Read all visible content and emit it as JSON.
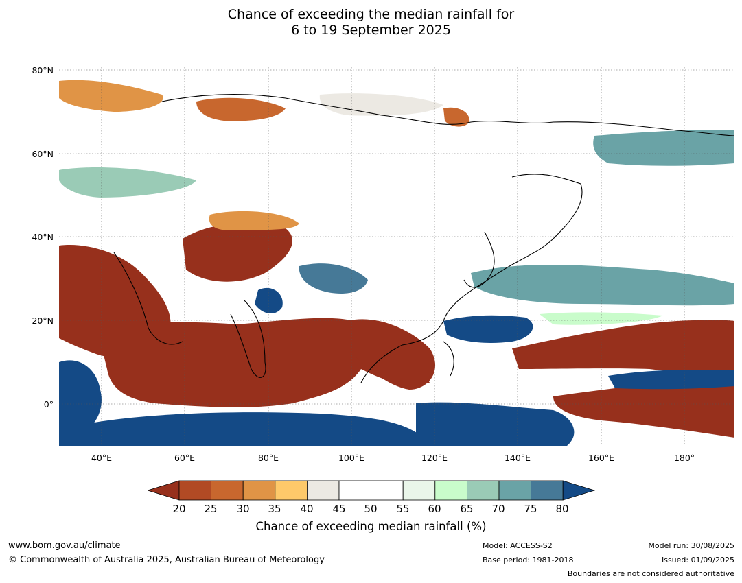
{
  "title": {
    "line1": "Chance of exceeding the median rainfall for",
    "line2": "6 to 19 September 2025"
  },
  "map": {
    "region": "Asia and western Pacific",
    "lon_range": [
      30,
      192
    ],
    "lat_range": [
      -10,
      80
    ],
    "lat_labels": [
      "80°N",
      "60°N",
      "40°N",
      "20°N",
      "0°"
    ],
    "lon_labels": [
      "40°E",
      "60°E",
      "80°E",
      "100°E",
      "120°E",
      "140°E",
      "160°E",
      "180°"
    ],
    "colors": {
      "below_20": "#97301c",
      "20_25": "#b14a24",
      "25_30": "#c8672e",
      "30_35": "#e09446",
      "35_40": "#fec96a",
      "40_45": "#ece9e3",
      "45_55": "#ffffff",
      "55_60": "#eaf6ea",
      "60_65": "#c9fccb",
      "65_70": "#9acbb6",
      "70_75": "#6aa3a6",
      "75_80": "#467997",
      "above_80": "#144a86"
    }
  },
  "colorbar": {
    "title": "Chance of exceeding median rainfall (%)",
    "ticks": [
      "20",
      "25",
      "30",
      "35",
      "40",
      "45",
      "50",
      "55",
      "60",
      "65",
      "70",
      "75",
      "80"
    ],
    "bins": [
      "#b14a24",
      "#c8672e",
      "#e09446",
      "#fec96a",
      "#ece9e3",
      "#ffffff",
      "#ffffff",
      "#eaf6ea",
      "#c9fccb",
      "#9acbb6",
      "#6aa3a6",
      "#467997"
    ],
    "under_color": "#97301c",
    "over_color": "#144a86"
  },
  "footer": {
    "website": "www.bom.gov.au/climate",
    "copyright": "© Commonwealth of Australia 2025, Australian Bureau of Meteorology",
    "model": "Model: ACCESS-S2",
    "base_period": "Base period: 1981-2018",
    "model_run": "Model run: 30/08/2025",
    "issued": "Issued: 01/09/2025",
    "disclaimer": "Boundaries are not considered authoritative"
  }
}
